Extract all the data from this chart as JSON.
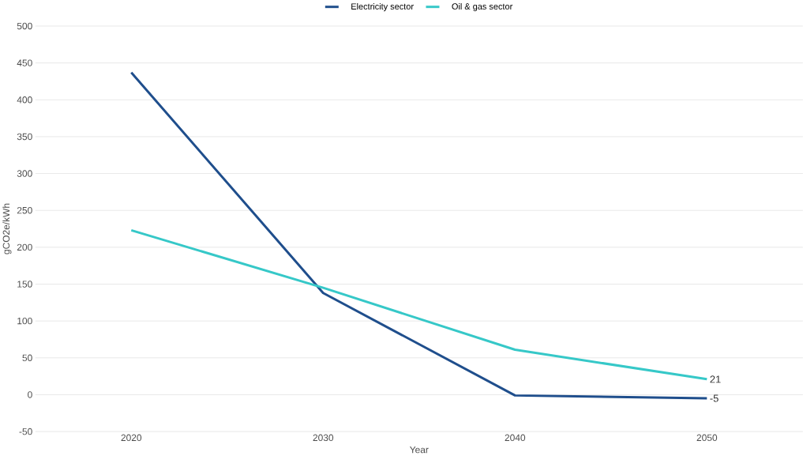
{
  "chart_data": {
    "type": "line",
    "xlabel": "Year",
    "ylabel": "gCO2e/kWh",
    "categories": [
      "2020",
      "2030",
      "2040",
      "2050"
    ],
    "series": [
      {
        "name": "Electricity sector",
        "color": "#1f4e8c",
        "values": [
          437,
          138,
          -1,
          -5
        ],
        "value_labels": [
          null,
          null,
          null,
          "-5"
        ]
      },
      {
        "name": "Oil & gas sector",
        "color": "#36c8c8",
        "values": [
          223,
          145,
          61,
          21
        ],
        "value_labels": [
          null,
          null,
          null,
          "21"
        ]
      }
    ],
    "ylim": [
      -50,
      500
    ],
    "yticks": [
      -50,
      0,
      50,
      100,
      150,
      200,
      250,
      300,
      350,
      400,
      450,
      500
    ],
    "grid": "y",
    "legend": "top",
    "marker": "none",
    "line_style": "solid"
  }
}
